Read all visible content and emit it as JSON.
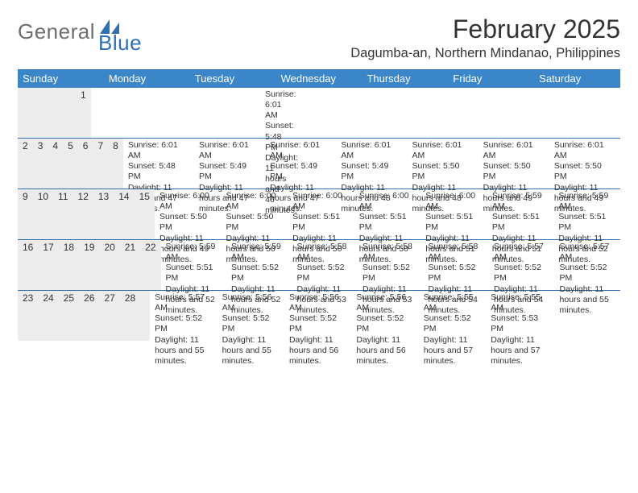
{
  "brand": {
    "text_general": "General",
    "text_blue": "Blue",
    "logo_fill": "#2f6fb3"
  },
  "title": {
    "month_year": "February 2025",
    "location": "Dagumba-an, Northern Mindanao, Philippines"
  },
  "colors": {
    "header_bar": "#3b86c8",
    "weekday_text": "#ffffff",
    "daynum_bg": "#ececec",
    "rule": "#2f6fb3",
    "text": "#333333",
    "background": "#ffffff"
  },
  "typography": {
    "title_fontsize_pt": 24,
    "location_fontsize_pt": 12,
    "weekday_fontsize_pt": 10,
    "daynum_fontsize_pt": 9,
    "details_fontsize_pt": 8
  },
  "weekdays": [
    "Sunday",
    "Monday",
    "Tuesday",
    "Wednesday",
    "Thursday",
    "Friday",
    "Saturday"
  ],
  "weeks": [
    [
      {
        "day": "",
        "sunrise": "",
        "sunset": "",
        "daylight": ""
      },
      {
        "day": "",
        "sunrise": "",
        "sunset": "",
        "daylight": ""
      },
      {
        "day": "",
        "sunrise": "",
        "sunset": "",
        "daylight": ""
      },
      {
        "day": "",
        "sunrise": "",
        "sunset": "",
        "daylight": ""
      },
      {
        "day": "",
        "sunrise": "",
        "sunset": "",
        "daylight": ""
      },
      {
        "day": "",
        "sunrise": "",
        "sunset": "",
        "daylight": ""
      },
      {
        "day": "1",
        "sunrise": "Sunrise: 6:01 AM",
        "sunset": "Sunset: 5:48 PM",
        "daylight": "Daylight: 11 hours and 46 minutes."
      }
    ],
    [
      {
        "day": "2",
        "sunrise": "Sunrise: 6:01 AM",
        "sunset": "Sunset: 5:48 PM",
        "daylight": "Daylight: 11 hours and 47 minutes."
      },
      {
        "day": "3",
        "sunrise": "Sunrise: 6:01 AM",
        "sunset": "Sunset: 5:49 PM",
        "daylight": "Daylight: 11 hours and 47 minutes."
      },
      {
        "day": "4",
        "sunrise": "Sunrise: 6:01 AM",
        "sunset": "Sunset: 5:49 PM",
        "daylight": "Daylight: 11 hours and 47 minutes."
      },
      {
        "day": "5",
        "sunrise": "Sunrise: 6:01 AM",
        "sunset": "Sunset: 5:49 PM",
        "daylight": "Daylight: 11 hours and 48 minutes."
      },
      {
        "day": "6",
        "sunrise": "Sunrise: 6:01 AM",
        "sunset": "Sunset: 5:50 PM",
        "daylight": "Daylight: 11 hours and 48 minutes."
      },
      {
        "day": "7",
        "sunrise": "Sunrise: 6:01 AM",
        "sunset": "Sunset: 5:50 PM",
        "daylight": "Daylight: 11 hours and 49 minutes."
      },
      {
        "day": "8",
        "sunrise": "Sunrise: 6:01 AM",
        "sunset": "Sunset: 5:50 PM",
        "daylight": "Daylight: 11 hours and 49 minutes."
      }
    ],
    [
      {
        "day": "9",
        "sunrise": "Sunrise: 6:00 AM",
        "sunset": "Sunset: 5:50 PM",
        "daylight": "Daylight: 11 hours and 49 minutes."
      },
      {
        "day": "10",
        "sunrise": "Sunrise: 6:00 AM",
        "sunset": "Sunset: 5:50 PM",
        "daylight": "Daylight: 11 hours and 50 minutes."
      },
      {
        "day": "11",
        "sunrise": "Sunrise: 6:00 AM",
        "sunset": "Sunset: 5:51 PM",
        "daylight": "Daylight: 11 hours and 50 minutes."
      },
      {
        "day": "12",
        "sunrise": "Sunrise: 6:00 AM",
        "sunset": "Sunset: 5:51 PM",
        "daylight": "Daylight: 11 hours and 50 minutes."
      },
      {
        "day": "13",
        "sunrise": "Sunrise: 6:00 AM",
        "sunset": "Sunset: 5:51 PM",
        "daylight": "Daylight: 11 hours and 51 minutes."
      },
      {
        "day": "14",
        "sunrise": "Sunrise: 5:59 AM",
        "sunset": "Sunset: 5:51 PM",
        "daylight": "Daylight: 11 hours and 51 minutes."
      },
      {
        "day": "15",
        "sunrise": "Sunrise: 5:59 AM",
        "sunset": "Sunset: 5:51 PM",
        "daylight": "Daylight: 11 hours and 52 minutes."
      }
    ],
    [
      {
        "day": "16",
        "sunrise": "Sunrise: 5:59 AM",
        "sunset": "Sunset: 5:51 PM",
        "daylight": "Daylight: 11 hours and 52 minutes."
      },
      {
        "day": "17",
        "sunrise": "Sunrise: 5:59 AM",
        "sunset": "Sunset: 5:52 PM",
        "daylight": "Daylight: 11 hours and 52 minutes."
      },
      {
        "day": "18",
        "sunrise": "Sunrise: 5:58 AM",
        "sunset": "Sunset: 5:52 PM",
        "daylight": "Daylight: 11 hours and 53 minutes."
      },
      {
        "day": "19",
        "sunrise": "Sunrise: 5:58 AM",
        "sunset": "Sunset: 5:52 PM",
        "daylight": "Daylight: 11 hours and 53 minutes."
      },
      {
        "day": "20",
        "sunrise": "Sunrise: 5:58 AM",
        "sunset": "Sunset: 5:52 PM",
        "daylight": "Daylight: 11 hours and 54 minutes."
      },
      {
        "day": "21",
        "sunrise": "Sunrise: 5:57 AM",
        "sunset": "Sunset: 5:52 PM",
        "daylight": "Daylight: 11 hours and 54 minutes."
      },
      {
        "day": "22",
        "sunrise": "Sunrise: 5:57 AM",
        "sunset": "Sunset: 5:52 PM",
        "daylight": "Daylight: 11 hours and 55 minutes."
      }
    ],
    [
      {
        "day": "23",
        "sunrise": "Sunrise: 5:57 AM",
        "sunset": "Sunset: 5:52 PM",
        "daylight": "Daylight: 11 hours and 55 minutes."
      },
      {
        "day": "24",
        "sunrise": "Sunrise: 5:56 AM",
        "sunset": "Sunset: 5:52 PM",
        "daylight": "Daylight: 11 hours and 55 minutes."
      },
      {
        "day": "25",
        "sunrise": "Sunrise: 5:56 AM",
        "sunset": "Sunset: 5:52 PM",
        "daylight": "Daylight: 11 hours and 56 minutes."
      },
      {
        "day": "26",
        "sunrise": "Sunrise: 5:56 AM",
        "sunset": "Sunset: 5:52 PM",
        "daylight": "Daylight: 11 hours and 56 minutes."
      },
      {
        "day": "27",
        "sunrise": "Sunrise: 5:55 AM",
        "sunset": "Sunset: 5:52 PM",
        "daylight": "Daylight: 11 hours and 57 minutes."
      },
      {
        "day": "28",
        "sunrise": "Sunrise: 5:55 AM",
        "sunset": "Sunset: 5:53 PM",
        "daylight": "Daylight: 11 hours and 57 minutes."
      },
      {
        "day": "",
        "sunrise": "",
        "sunset": "",
        "daylight": ""
      }
    ]
  ]
}
